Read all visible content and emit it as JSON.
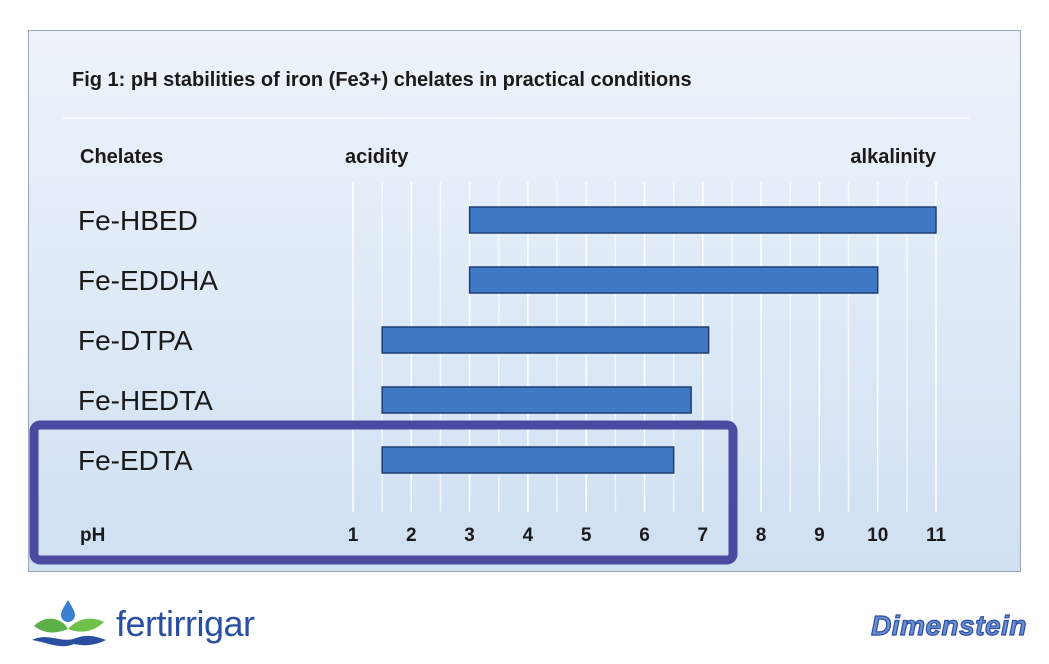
{
  "chart_data": {
    "type": "bar",
    "orientation": "horizontal-range",
    "title": "Fig 1: pH stabilities of iron (Fe3+)  chelates in practical  conditions",
    "category_header": "Chelates",
    "scale_left_label": "acidity",
    "scale_right_label": "alkalinity",
    "xlabel": "pH",
    "x_ticks": [
      1,
      2,
      3,
      4,
      5,
      6,
      7,
      8,
      9,
      10,
      11
    ],
    "xlim": [
      1,
      11
    ],
    "grid": true,
    "categories": [
      "Fe-HBED",
      "Fe-EDDHA",
      "Fe-DTPA",
      "Fe-HEDTA",
      "Fe-EDTA"
    ],
    "ranges": [
      {
        "name": "Fe-HBED",
        "start": 3.0,
        "end": 11.0
      },
      {
        "name": "Fe-EDDHA",
        "start": 3.0,
        "end": 10.0
      },
      {
        "name": "Fe-DTPA",
        "start": 1.5,
        "end": 7.1
      },
      {
        "name": "Fe-HEDTA",
        "start": 1.5,
        "end": 6.8
      },
      {
        "name": "Fe-EDTA",
        "start": 1.5,
        "end": 6.5
      }
    ],
    "highlighted_category": "Fe-EDTA",
    "highlight_range": [
      1,
      7
    ],
    "colors": {
      "bar_fill": "#3f78c4",
      "bar_stroke": "#1d3f72",
      "highlight_border": "#4a4aa0",
      "panel_top": "#eef3fa",
      "panel_bottom": "#cfe0f2"
    }
  },
  "logos": {
    "left_text": "fertirrigar",
    "left_icon": "water-drop-leaf-wave-icon",
    "right_text": "Dimenstein"
  }
}
